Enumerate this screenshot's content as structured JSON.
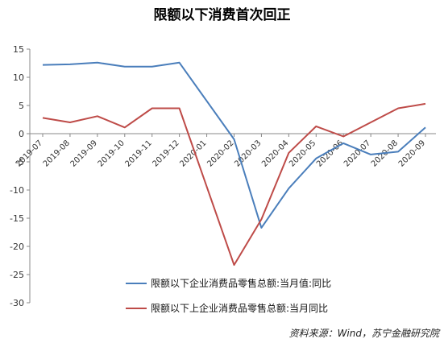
{
  "chart_data": {
    "type": "line",
    "title": "限额以下消费首次回正",
    "categories": [
      "2019-07",
      "2019-08",
      "2019-09",
      "2019-10",
      "2019-11",
      "2019-12",
      "2020-01",
      "2020-02",
      "2020-03",
      "2020-04",
      "2020-05",
      "2020-06",
      "2020-07",
      "2020-08",
      "2020-09"
    ],
    "series": [
      {
        "name": "限额以下企业消费品零售总额:当月值:同比",
        "color": "#4a7ebb",
        "values": [
          12.2,
          12.3,
          12.6,
          11.9,
          11.9,
          12.6,
          null,
          -1.0,
          -16.7,
          -9.7,
          -4.4,
          -1.7,
          -3.7,
          -3.2,
          1.1
        ]
      },
      {
        "name": "限额以下上企业消费品零售总额:当月同比",
        "color": "#be4b48",
        "values": [
          2.8,
          2.0,
          3.1,
          1.1,
          4.5,
          4.5,
          null,
          -23.3,
          -15.2,
          -3.4,
          1.3,
          -0.5,
          2.0,
          4.5,
          5.3
        ]
      }
    ],
    "ylim": [
      -30,
      15
    ],
    "yticks": [
      15,
      10,
      5,
      0,
      -5,
      -10,
      -15,
      -20,
      -25,
      -30
    ],
    "legend_position": "bottom",
    "source": "资料来源：Wind，苏宁金融研究院"
  }
}
